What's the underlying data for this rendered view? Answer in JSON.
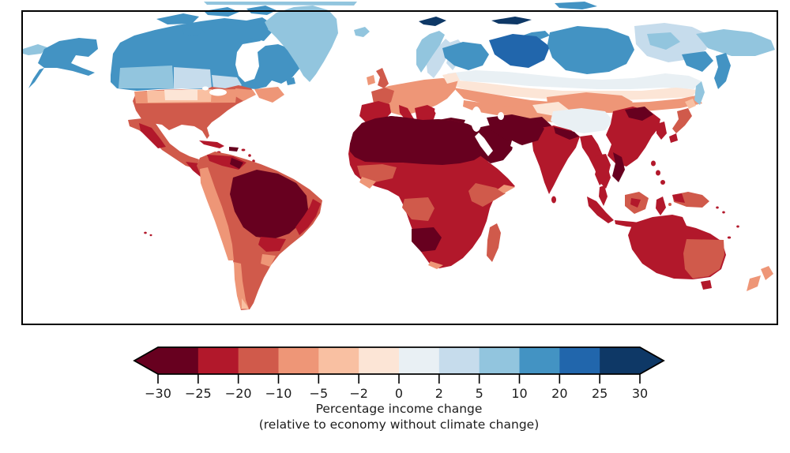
{
  "figure": {
    "caption_line1": "Percentage income change",
    "caption_line2": "(relative to economy without climate change)"
  },
  "chart_data": {
    "type": "choropleth_map",
    "description": "World map of projected percentage income change relative to an economy without climate change; tropics and mid-latitudes show losses (reds), high northern latitudes show gains (blues)",
    "colorbar": {
      "orientation": "horizontal",
      "extend": "both",
      "boundaries": [
        -30,
        -25,
        -20,
        -10,
        -5,
        -2,
        0,
        2,
        5,
        10,
        20,
        25,
        30
      ],
      "tick_labels": [
        "−30",
        "−25",
        "−20",
        "−10",
        "−5",
        "−2",
        "0",
        "2",
        "5",
        "10",
        "20",
        "25",
        "30"
      ],
      "colors": [
        "#67001f",
        "#b2182b",
        "#d05a4b",
        "#ee9677",
        "#f9c0a2",
        "#fce5d6",
        "#e9f0f4",
        "#c6dcec",
        "#92c5de",
        "#4393c3",
        "#2166ac",
        "#0e3866"
      ],
      "label_line1": "Percentage income change",
      "label_line2": "(relative to economy without climate change)"
    },
    "regions": [
      {
        "name": "arctic-coast",
        "value": 7
      },
      {
        "name": "arctic-top-right",
        "value": 15
      },
      {
        "name": "chukotka-west",
        "value": 7
      },
      {
        "name": "alaska",
        "value": 15
      },
      {
        "name": "canada",
        "value": 15
      },
      {
        "name": "canadian-arctic",
        "value": 15
      },
      {
        "name": "canada-prairies",
        "value": 7
      },
      {
        "name": "canada-prairies-pale",
        "value": 3.5
      },
      {
        "name": "quebec-pale",
        "value": 3.5
      },
      {
        "name": "greenland",
        "value": 7
      },
      {
        "name": "maritimes",
        "value": -7.5
      },
      {
        "name": "us-mainland",
        "value": -15
      },
      {
        "name": "us-north-band",
        "value": -7.5
      },
      {
        "name": "us-north-pale",
        "value": -3.5
      },
      {
        "name": "us-north-palest",
        "value": -1
      },
      {
        "name": "us-northeast",
        "value": -7.5
      },
      {
        "name": "mexico",
        "value": -15
      },
      {
        "name": "mexico-west",
        "value": -22.5
      },
      {
        "name": "central-america",
        "value": -22.5
      },
      {
        "name": "cuba",
        "value": -22.5
      },
      {
        "name": "hispaniola",
        "value": -27
      },
      {
        "name": "caribbean",
        "value": -22.5
      },
      {
        "name": "hawaii",
        "value": -22.5
      },
      {
        "name": "south-america",
        "value": -15
      },
      {
        "name": "amazon",
        "value": -27
      },
      {
        "name": "sa-north",
        "value": -22.5
      },
      {
        "name": "venezuela",
        "value": -27
      },
      {
        "name": "sa-east",
        "value": -22.5
      },
      {
        "name": "sa-south",
        "value": -22.5
      },
      {
        "name": "andes-coast",
        "value": -7.5
      },
      {
        "name": "paraguay",
        "value": -7.5
      },
      {
        "name": "chile-south",
        "value": -7.5
      },
      {
        "name": "patagonia-tip",
        "value": -3.5
      },
      {
        "name": "iceland",
        "value": 7
      },
      {
        "name": "uk",
        "value": -15
      },
      {
        "name": "ireland",
        "value": -7.5
      },
      {
        "name": "norway",
        "value": 7
      },
      {
        "name": "sweden",
        "value": 3.5
      },
      {
        "name": "finland",
        "value": 3.5
      },
      {
        "name": "baltics",
        "value": -1
      },
      {
        "name": "europe-mainland",
        "value": -7.5
      },
      {
        "name": "france",
        "value": -15
      },
      {
        "name": "iberia",
        "value": -22.5
      },
      {
        "name": "italy",
        "value": -22.5
      },
      {
        "name": "sicily",
        "value": -27
      },
      {
        "name": "balkans",
        "value": -22.5
      },
      {
        "name": "greece",
        "value": -27
      },
      {
        "name": "turkey",
        "value": -27
      },
      {
        "name": "svalbard",
        "value": 28
      },
      {
        "name": "novaya-zemlya",
        "value": 15
      },
      {
        "name": "nw-russia",
        "value": 15
      },
      {
        "name": "west-siberia",
        "value": 22.5
      },
      {
        "name": "central-siberia",
        "value": 15
      },
      {
        "name": "east-siberia",
        "value": 3.5
      },
      {
        "name": "yakutia",
        "value": 7
      },
      {
        "name": "chukotka",
        "value": 7
      },
      {
        "name": "kamchatka",
        "value": 15
      },
      {
        "name": "magadan",
        "value": 15
      },
      {
        "name": "sakhalin",
        "value": 7
      },
      {
        "name": "russia-mid-band",
        "value": 1
      },
      {
        "name": "russia-transition",
        "value": -1
      },
      {
        "name": "russia-south",
        "value": -7.5
      },
      {
        "name": "kazakhstan",
        "value": -7.5
      },
      {
        "name": "central-asia",
        "value": -22.5
      },
      {
        "name": "mongolia",
        "value": -7.5
      },
      {
        "name": "xinjiang",
        "value": -1
      },
      {
        "name": "tibet",
        "value": 1
      },
      {
        "name": "china",
        "value": -22.5
      },
      {
        "name": "manchuria",
        "value": -27
      },
      {
        "name": "korea",
        "value": -22.5
      },
      {
        "name": "hokkaido",
        "value": -3.5
      },
      {
        "name": "honshu",
        "value": -15
      },
      {
        "name": "kyushu",
        "value": -22.5
      },
      {
        "name": "pakistan",
        "value": -27
      },
      {
        "name": "india",
        "value": -22.5
      },
      {
        "name": "india-north",
        "value": -27
      },
      {
        "name": "sri-lanka",
        "value": -22.5
      },
      {
        "name": "myanmar",
        "value": -22.5
      },
      {
        "name": "thailand",
        "value": -22.5
      },
      {
        "name": "vietnam",
        "value": -27
      },
      {
        "name": "malay",
        "value": -22.5
      },
      {
        "name": "sumatra",
        "value": -22.5
      },
      {
        "name": "borneo",
        "value": -15
      },
      {
        "name": "borneo-interior",
        "value": -22.5
      },
      {
        "name": "java",
        "value": -22.5
      },
      {
        "name": "sulawesi",
        "value": -22.5
      },
      {
        "name": "philippines",
        "value": -22.5
      },
      {
        "name": "moluccas",
        "value": -15
      },
      {
        "name": "new-guinea",
        "value": -15
      },
      {
        "name": "new-guinea-west",
        "value": -22.5
      },
      {
        "name": "solomons",
        "value": -22.5
      },
      {
        "name": "australia",
        "value": -22.5
      },
      {
        "name": "australia-se",
        "value": -15
      },
      {
        "name": "tasmania",
        "value": -22.5
      },
      {
        "name": "nz",
        "value": -7.5
      },
      {
        "name": "pacific-islands",
        "value": -22.5
      },
      {
        "name": "africa",
        "value": -22.5
      },
      {
        "name": "north-africa",
        "value": -27
      },
      {
        "name": "west-africa",
        "value": -15
      },
      {
        "name": "west-africa-coast",
        "value": -7.5
      },
      {
        "name": "congo",
        "value": -15
      },
      {
        "name": "east-africa",
        "value": -15
      },
      {
        "name": "somalia",
        "value": -7.5
      },
      {
        "name": "southern-africa",
        "value": -27
      },
      {
        "name": "south-africa-coast",
        "value": -7.5
      },
      {
        "name": "madagascar",
        "value": -15
      },
      {
        "name": "arabia",
        "value": -27
      },
      {
        "name": "iran",
        "value": -27
      }
    ]
  }
}
